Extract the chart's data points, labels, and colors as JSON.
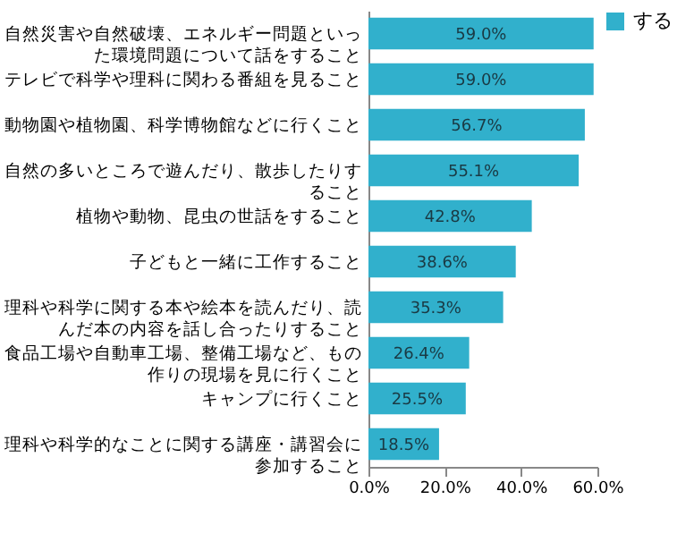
{
  "chart_data": {
    "type": "bar",
    "orientation": "horizontal",
    "categories": [
      "自然災害や自然破壊、エネルギー問題といった環境問題について話をすること",
      "テレビで科学や理科に関わる番組を見ること",
      "動物園や植物園、科学博物館などに行くこと",
      "自然の多いところで遊んだり、散歩したりすること",
      "植物や動物、昆虫の世話をすること",
      "子どもと一緒に工作すること",
      "理科や科学に関する本や絵本を読んだり、読んだ本の内容を話し合ったりすること",
      "食品工場や自動車工場、整備工場など、もの作りの現場を見に行くこと",
      "キャンプに行くこと",
      "理科や科学的なことに関する講座・講習会に参加すること"
    ],
    "series": [
      {
        "name": "する",
        "color": "#31b0cc",
        "values": [
          59.0,
          59.0,
          56.7,
          55.1,
          42.8,
          38.6,
          35.3,
          26.4,
          25.5,
          18.5
        ],
        "value_labels": [
          "59.0%",
          "59.0%",
          "56.7%",
          "55.1%",
          "42.8%",
          "38.6%",
          "35.3%",
          "26.4%",
          "25.5%",
          "18.5%"
        ]
      }
    ],
    "xlim": [
      0,
      60
    ],
    "xticks": [
      {
        "value": 0,
        "label": "0.0%"
      },
      {
        "value": 20,
        "label": "20.0%"
      },
      {
        "value": 40,
        "label": "40.0%"
      },
      {
        "value": 60,
        "label": "60.0%"
      }
    ],
    "grid": false,
    "legend": "right"
  }
}
